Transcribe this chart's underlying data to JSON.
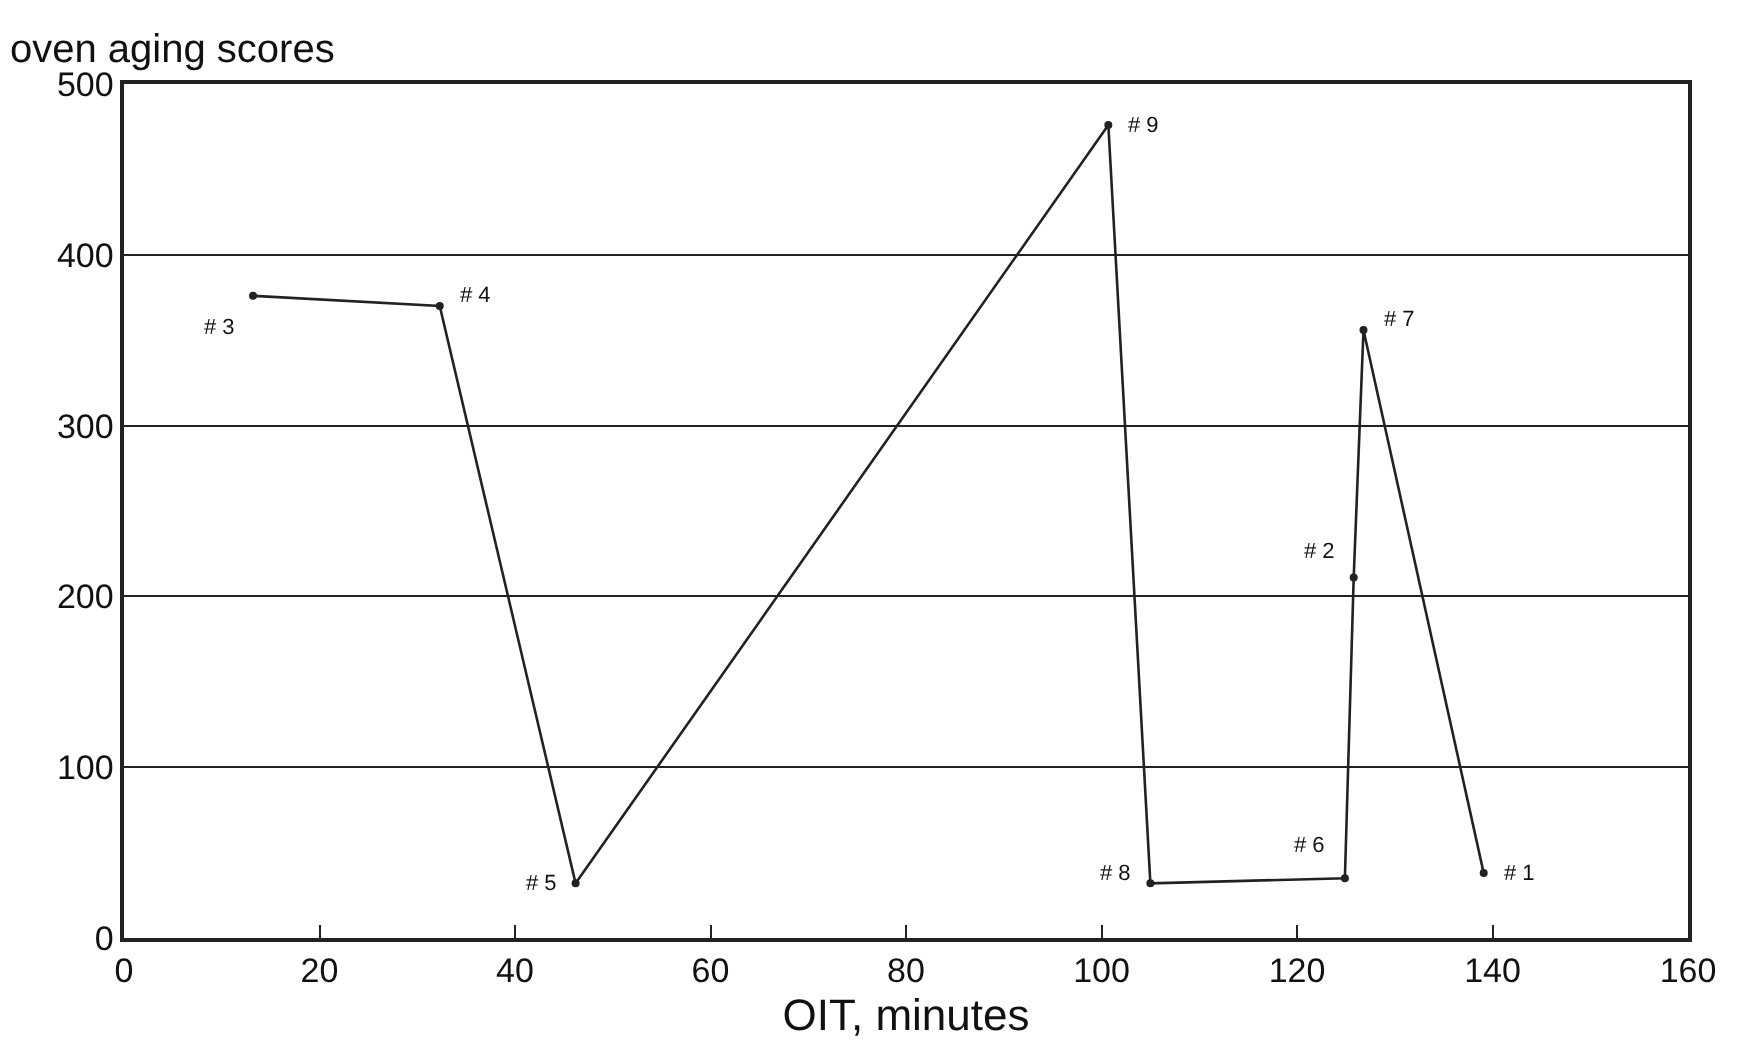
{
  "chart_data": {
    "type": "line",
    "ylabel": "oven aging scores",
    "xlabel": "OIT, minutes",
    "x": [
      13.2,
      32.3,
      46.2,
      100.7,
      105,
      124.9,
      125.8,
      126.8,
      139.1
    ],
    "series": [
      {
        "color": "#222222",
        "values": [
          376,
          370,
          32,
          476,
          32,
          35,
          211,
          356,
          38
        ]
      }
    ],
    "annotations": [
      {
        "text": "# 3",
        "x": 13.2,
        "y": 376
      },
      {
        "text": "# 4",
        "x": 32.3,
        "y": 370
      },
      {
        "text": "# 5",
        "x": 46.2,
        "y": 32
      },
      {
        "text": "# 9",
        "x": 100.7,
        "y": 476
      },
      {
        "text": "# 8",
        "x": 105,
        "y": 32
      },
      {
        "text": "# 6",
        "x": 124.9,
        "y": 35
      },
      {
        "text": "# 2",
        "x": 125.8,
        "y": 211
      },
      {
        "text": "# 7",
        "x": 126.8,
        "y": 356
      },
      {
        "text": "# 1",
        "x": 139.1,
        "y": 38
      }
    ],
    "xlim": [
      0,
      160
    ],
    "xticks": [
      0,
      20,
      40,
      60,
      80,
      100,
      120,
      140,
      160
    ],
    "ylim": [
      0,
      500
    ],
    "yticks": [
      0,
      100,
      200,
      300,
      400,
      500
    ],
    "grid": "y",
    "marker": "circle",
    "line_style": "solid"
  }
}
